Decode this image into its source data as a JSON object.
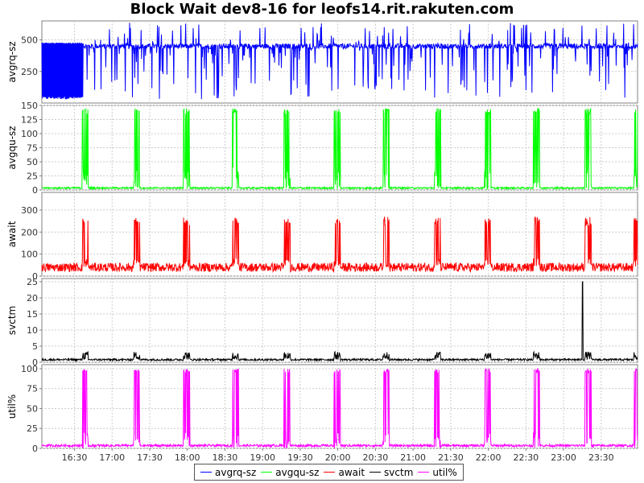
{
  "chart": {
    "title": "Block Wait dev8-16 for leofs14.rit.rakuten.com"
  },
  "colors": {
    "avgrq": "#0000ff",
    "avgqu": "#00ff00",
    "await": "#ff0000",
    "svctm": "#000000",
    "util": "#ff00ff",
    "grid": "#cccccc",
    "axis": "#808080"
  },
  "chart_data": {
    "type": "line",
    "title": "Block Wait dev8-16 for leofs14.rit.rakuten.com",
    "x": {
      "ticks": [
        "16:30",
        "17:00",
        "17:30",
        "18:00",
        "18:30",
        "19:00",
        "19:30",
        "20:00",
        "20:30",
        "21:00",
        "21:30",
        "22:00",
        "22:30",
        "23:00",
        "23:30"
      ],
      "range": [
        "16:04",
        "23:59"
      ],
      "burst_times": [
        "16:37",
        "17:18",
        "17:58",
        "18:37",
        "19:18",
        "19:58",
        "20:37",
        "21:18",
        "21:58",
        "22:37",
        "23:18",
        "23:57"
      ],
      "grid": true
    },
    "panels": [
      {
        "id": "avgrq",
        "ylabel": "avgrq-sz",
        "ylim": [
          0,
          650
        ],
        "yticks": [
          250,
          500
        ],
        "series": "avgrq-sz"
      },
      {
        "id": "avgqu",
        "ylabel": "avgqu-sz",
        "ylim": [
          0,
          150
        ],
        "yticks": [
          0,
          25,
          50,
          75,
          100,
          125,
          150
        ],
        "series": "avgqu-sz"
      },
      {
        "id": "await",
        "ylabel": "await",
        "ylim": [
          0,
          380
        ],
        "yticks": [
          0,
          100,
          200,
          300
        ],
        "series": "await"
      },
      {
        "id": "svctm",
        "ylabel": "svctm",
        "ylim": [
          0,
          26
        ],
        "yticks": [
          0,
          5,
          10,
          15,
          20,
          25
        ],
        "series": "svctm"
      },
      {
        "id": "util",
        "ylabel": "util%",
        "ylim": [
          0,
          105
        ],
        "yticks": [
          0,
          25,
          50,
          75,
          100
        ],
        "series": "util%"
      }
    ],
    "series": [
      {
        "name": "avgrq-sz",
        "baseline": 450,
        "burst_low": 30,
        "burst_high": 640
      },
      {
        "name": "avgqu-sz",
        "baseline": 2,
        "burst_peak": 145
      },
      {
        "name": "await",
        "baseline": 40,
        "burst_peak": 270
      },
      {
        "name": "svctm",
        "baseline": 0.5,
        "burst_peak": 2.5,
        "spike_time": "23:15",
        "spike_value": 25
      },
      {
        "name": "util%",
        "baseline": 2,
        "burst_peak": 100
      }
    ],
    "legend": [
      "avgrq-sz",
      "avgqu-sz",
      "await",
      "svctm",
      "util%"
    ],
    "legend_position": "bottom-center"
  }
}
